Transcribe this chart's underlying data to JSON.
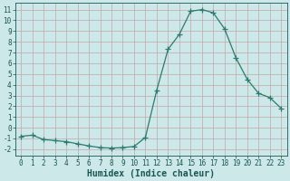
{
  "x": [
    0,
    1,
    2,
    3,
    4,
    5,
    6,
    7,
    8,
    9,
    10,
    11,
    12,
    13,
    14,
    15,
    16,
    17,
    18,
    19,
    20,
    21,
    22,
    23
  ],
  "y": [
    -0.8,
    -0.7,
    -1.1,
    -1.2,
    -1.3,
    -1.5,
    -1.7,
    -1.85,
    -1.9,
    -1.85,
    -1.75,
    -0.9,
    3.5,
    7.3,
    8.7,
    10.85,
    11.0,
    10.7,
    9.2,
    6.5,
    4.5,
    3.2,
    2.8,
    1.8
  ],
  "line_color": "#2d7a6e",
  "marker": "+",
  "marker_size": 4,
  "bg_color": "#cce8e8",
  "grid_color": "#c0a8a8",
  "xlabel": "Humidex (Indice chaleur)",
  "xlim": [
    -0.5,
    23.5
  ],
  "ylim": [
    -2.6,
    11.6
  ],
  "yticks": [
    -2,
    -1,
    0,
    1,
    2,
    3,
    4,
    5,
    6,
    7,
    8,
    9,
    10,
    11
  ],
  "xticks": [
    0,
    1,
    2,
    3,
    4,
    5,
    6,
    7,
    8,
    9,
    10,
    11,
    12,
    13,
    14,
    15,
    16,
    17,
    18,
    19,
    20,
    21,
    22,
    23
  ],
  "tick_label_fontsize": 5.5,
  "xlabel_fontsize": 7.0,
  "label_color": "#1a5555"
}
